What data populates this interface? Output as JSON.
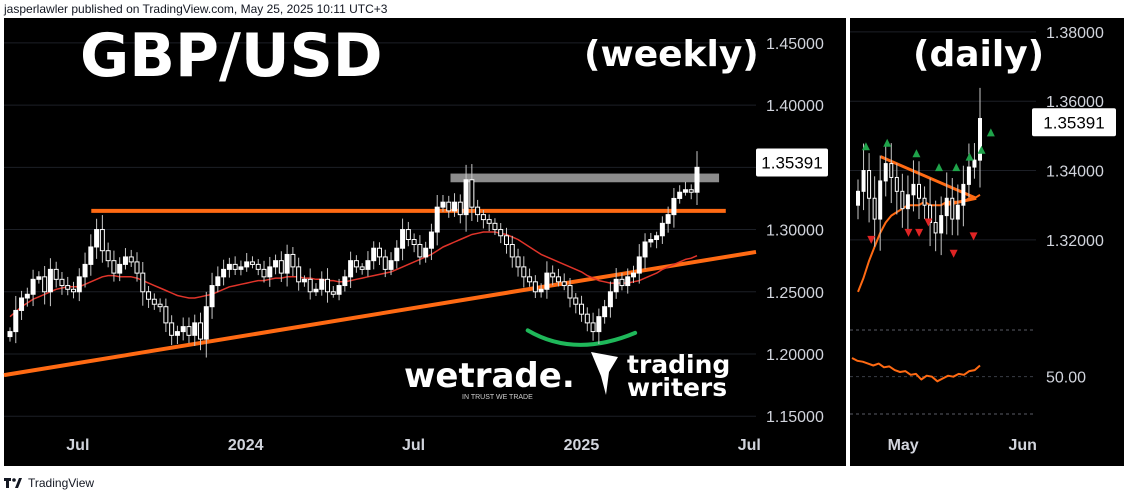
{
  "header": {
    "text": "jasperlawler published on TradingView.com, May 25, 2025 10:11 UTC+3"
  },
  "footer": {
    "brand": "TradingView",
    "logo_icon": "tradingview-logo-icon"
  },
  "colors": {
    "background": "#000000",
    "up_candle": "#ffffff",
    "wick": "#c8c8c8",
    "level_line": "#ff6a13",
    "ma_line": "#e0342a",
    "arc": "#1fb85a",
    "resistance_box": "#8c8c8c",
    "signal_up": "#1fa34a",
    "signal_down": "#e02424",
    "grid": "#1c1f26"
  },
  "chart_data": [
    {
      "type": "candlestick",
      "title": "GBP/USD",
      "subtitle": "(weekly)",
      "y_ticks": [
        "1.45000",
        "1.40000",
        "1.35000",
        "1.30000",
        "1.25000",
        "1.20000",
        "1.15000"
      ],
      "y_tick_values": [
        1.45,
        1.4,
        1.35,
        1.3,
        1.25,
        1.2,
        1.15
      ],
      "ylim": [
        1.11,
        1.47
      ],
      "x_ticks": [
        "Jul",
        "2024",
        "Jul",
        "2025",
        "Jul"
      ],
      "x_tick_values": [
        2023.5,
        2024.0,
        2024.5,
        2025.0,
        2025.5
      ],
      "xlim": [
        2023.28,
        2025.52
      ],
      "last_price": "1.35391",
      "last_value": 1.35391,
      "closes": [
        1.218,
        1.235,
        1.245,
        1.248,
        1.26,
        1.262,
        1.25,
        1.268,
        1.26,
        1.255,
        1.252,
        1.25,
        1.262,
        1.272,
        1.286,
        1.3,
        1.283,
        1.275,
        1.265,
        1.272,
        1.278,
        1.274,
        1.265,
        1.25,
        1.244,
        1.24,
        1.238,
        1.225,
        1.215,
        1.218,
        1.222,
        1.215,
        1.225,
        1.212,
        1.238,
        1.255,
        1.262,
        1.268,
        1.272,
        1.268,
        1.27,
        1.274,
        1.272,
        1.268,
        1.262,
        1.27,
        1.275,
        1.265,
        1.28,
        1.27,
        1.258,
        1.26,
        1.25,
        1.252,
        1.26,
        1.25,
        1.248,
        1.255,
        1.262,
        1.275,
        1.27,
        1.268,
        1.275,
        1.285,
        1.278,
        1.268,
        1.275,
        1.285,
        1.3,
        1.292,
        1.288,
        1.278,
        1.285,
        1.298,
        1.318,
        1.322,
        1.315,
        1.322,
        1.312,
        1.34,
        1.318,
        1.312,
        1.308,
        1.305,
        1.3,
        1.295,
        1.288,
        1.278,
        1.27,
        1.262,
        1.258,
        1.25,
        1.252,
        1.265,
        1.262,
        1.258,
        1.255,
        1.245,
        1.24,
        1.232,
        1.225,
        1.218,
        1.23,
        1.238,
        1.25,
        1.26,
        1.255,
        1.262,
        1.265,
        1.278,
        1.29,
        1.292,
        1.295,
        1.305,
        1.312,
        1.325,
        1.33,
        1.332,
        1.33,
        1.35
      ],
      "ma_values": [
        1.23,
        1.234,
        1.238,
        1.241,
        1.244,
        1.246,
        1.248,
        1.25,
        1.252,
        1.253,
        1.254,
        1.254,
        1.254,
        1.256,
        1.258,
        1.26,
        1.262,
        1.263,
        1.263,
        1.262,
        1.262,
        1.262,
        1.261,
        1.259,
        1.257,
        1.255,
        1.253,
        1.251,
        1.249,
        1.247,
        1.246,
        1.245,
        1.245,
        1.246,
        1.247,
        1.248,
        1.25,
        1.252,
        1.254,
        1.255,
        1.256,
        1.257,
        1.258,
        1.259,
        1.259,
        1.26,
        1.261,
        1.261,
        1.262,
        1.262,
        1.262,
        1.261,
        1.261,
        1.26,
        1.26,
        1.259,
        1.259,
        1.258,
        1.258,
        1.259,
        1.26,
        1.261,
        1.262,
        1.263,
        1.264,
        1.265,
        1.266,
        1.268,
        1.27,
        1.272,
        1.274,
        1.276,
        1.278,
        1.28,
        1.283,
        1.286,
        1.288,
        1.29,
        1.292,
        1.294,
        1.296,
        1.297,
        1.298,
        1.298,
        1.298,
        1.297,
        1.296,
        1.294,
        1.292,
        1.289,
        1.286,
        1.283,
        1.28,
        1.278,
        1.276,
        1.274,
        1.272,
        1.27,
        1.268,
        1.266,
        1.263,
        1.261,
        1.259,
        1.258,
        1.257,
        1.257,
        1.257,
        1.257,
        1.258,
        1.259,
        1.261,
        1.263,
        1.265,
        1.268,
        1.27,
        1.272,
        1.274,
        1.276,
        1.277,
        1.279
      ],
      "horizontal_level": 1.315,
      "resistance_zone": [
        1.338,
        1.345
      ],
      "trendline": {
        "from": [
          2023.28,
          1.183
        ],
        "to": [
          2025.52,
          1.282
        ]
      },
      "arc": {
        "from": [
          2024.84,
          1.219
        ],
        "mid": [
          2024.98,
          1.208
        ],
        "to": [
          2025.16,
          1.217
        ]
      },
      "logos": {
        "wetrade": "wetrade.",
        "wetrade_tagline": "IN TRUST WE TRADE",
        "trading_writers_1": "trading",
        "trading_writers_2": "writers"
      }
    },
    {
      "type": "candlestick",
      "subtitle": "(daily)",
      "y_ticks": [
        "1.38000",
        "1.36000",
        "1.34000",
        "1.32000"
      ],
      "y_tick_values": [
        1.38,
        1.36,
        1.34,
        1.32
      ],
      "ylim": [
        1.294,
        1.384
      ],
      "x_ticks": [
        "May",
        "Jun"
      ],
      "x_tick_values": [
        5.1,
        6.0
      ],
      "xlim": [
        4.7,
        6.1
      ],
      "last_price": "1.35391",
      "last_value": 1.35391,
      "closes": [
        1.334,
        1.34,
        1.332,
        1.326,
        1.337,
        1.342,
        1.338,
        1.334,
        1.329,
        1.333,
        1.336,
        1.332,
        1.33,
        1.325,
        1.322,
        1.327,
        1.332,
        1.326,
        1.33,
        1.336,
        1.341,
        1.343,
        1.355
      ],
      "ma_values": [
        1.305,
        1.309,
        1.314,
        1.318,
        1.322,
        1.325,
        1.327,
        1.328,
        1.329,
        1.33,
        1.33,
        1.33,
        1.331,
        1.33,
        1.33,
        1.33,
        1.331,
        1.331,
        1.331,
        1.331,
        1.332,
        1.332,
        1.333
      ],
      "triangle_lines": {
        "upper": [
          [
            4.93,
            1.344
          ],
          [
            5.65,
            1.332
          ]
        ],
        "lower": [
          [
            5.41,
            1.33
          ],
          [
            5.65,
            1.332
          ]
        ]
      },
      "up_signals": [
        [
          4.82,
          1.347
        ],
        [
          4.98,
          1.348
        ],
        [
          5.2,
          1.345
        ],
        [
          5.37,
          1.341
        ],
        [
          5.5,
          1.341
        ],
        [
          5.6,
          1.344
        ],
        [
          5.69,
          1.346
        ],
        [
          5.76,
          1.351
        ]
      ],
      "down_signals": [
        [
          4.86,
          1.32
        ],
        [
          5.14,
          1.322
        ],
        [
          5.22,
          1.322
        ],
        [
          5.29,
          1.325
        ],
        [
          5.48,
          1.316
        ],
        [
          5.63,
          1.321
        ]
      ],
      "indicator": {
        "tick": "50.00",
        "tick_value": 50,
        "ylim": [
          10,
          100
        ],
        "values": [
          70,
          67,
          66,
          64,
          62,
          64,
          60,
          61,
          57,
          55,
          56,
          52,
          53,
          47,
          51,
          50,
          45,
          48,
          51,
          50,
          53,
          52,
          56,
          57,
          62
        ]
      }
    }
  ]
}
